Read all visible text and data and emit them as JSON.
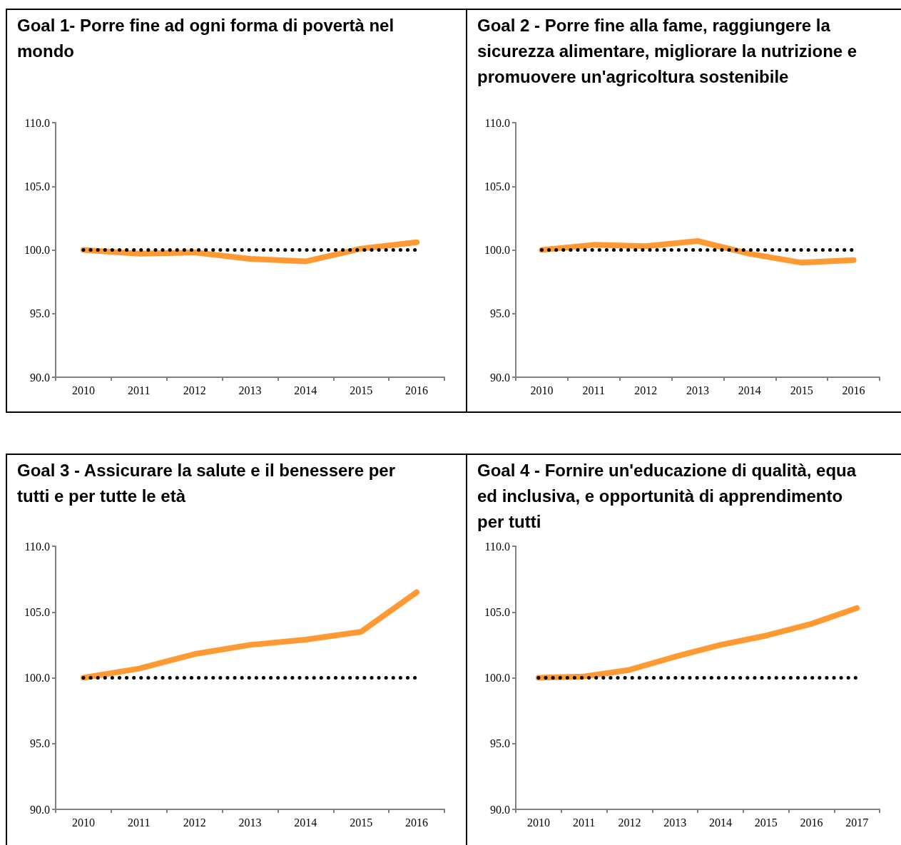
{
  "chart_data": [
    {
      "type": "line",
      "title": "Goal 1- Porre fine ad ogni forma di povertà nel mondo",
      "categories": [
        "2010",
        "2011",
        "2012",
        "2013",
        "2014",
        "2015",
        "2016"
      ],
      "series": [
        {
          "color": "#ff9933",
          "line_style": "solid",
          "values": [
            100.0,
            99.7,
            99.8,
            99.3,
            99.1,
            100.1,
            100.6
          ]
        },
        {
          "color": "#000000",
          "line_style": "dotted",
          "values": [
            100,
            100,
            100,
            100,
            100,
            100,
            100
          ]
        }
      ],
      "ylim": [
        90,
        110
      ],
      "yticks": [
        {
          "value": 90,
          "label": "90.0"
        },
        {
          "value": 95,
          "label": "95.0"
        },
        {
          "value": 100,
          "label": "100.0"
        },
        {
          "value": 105,
          "label": "105.0"
        },
        {
          "value": 110,
          "label": "110.0"
        }
      ],
      "marker": "none",
      "grid": false
    },
    {
      "type": "line",
      "title": "Goal 2 - Porre fine alla fame, raggiungere la sicurezza alimentare, migliorare la nutrizione e promuovere un'agricoltura sostenibile",
      "categories": [
        "2010",
        "2011",
        "2012",
        "2013",
        "2014",
        "2015",
        "2016"
      ],
      "series": [
        {
          "color": "#ff9933",
          "line_style": "solid",
          "values": [
            100.0,
            100.4,
            100.3,
            100.7,
            99.7,
            99.0,
            99.2
          ]
        },
        {
          "color": "#000000",
          "line_style": "dotted",
          "values": [
            100,
            100,
            100,
            100,
            100,
            100,
            100
          ]
        }
      ],
      "ylim": [
        90,
        110
      ],
      "yticks": [
        {
          "value": 90,
          "label": "90.0"
        },
        {
          "value": 95,
          "label": "95.0"
        },
        {
          "value": 100,
          "label": "100.0"
        },
        {
          "value": 105,
          "label": "105.0"
        },
        {
          "value": 110,
          "label": "110.0"
        }
      ],
      "marker": "none",
      "grid": false
    },
    {
      "type": "line",
      "title": "Goal 3 - Assicurare la salute e il benessere per tutti e per tutte le età",
      "categories": [
        "2010",
        "2011",
        "2012",
        "2013",
        "2014",
        "2015",
        "2016"
      ],
      "series": [
        {
          "color": "#ff9933",
          "line_style": "solid",
          "values": [
            100.0,
            100.7,
            101.8,
            102.5,
            102.9,
            103.5,
            106.5
          ]
        },
        {
          "color": "#000000",
          "line_style": "dotted",
          "values": [
            100,
            100,
            100,
            100,
            100,
            100,
            100
          ]
        }
      ],
      "ylim": [
        90,
        110
      ],
      "yticks": [
        {
          "value": 90,
          "label": "90.0"
        },
        {
          "value": 95,
          "label": "95.0"
        },
        {
          "value": 100,
          "label": "100.0"
        },
        {
          "value": 105,
          "label": "105.0"
        },
        {
          "value": 110,
          "label": "110.0"
        }
      ],
      "marker": "none",
      "grid": false
    },
    {
      "type": "line",
      "title": "Goal 4 - Fornire un'educazione di qualità, equa ed inclusiva, e opportunità di apprendimento per tutti",
      "categories": [
        "2010",
        "2011",
        "2012",
        "2013",
        "2014",
        "2015",
        "2016",
        "2017"
      ],
      "series": [
        {
          "color": "#ff9933",
          "line_style": "solid",
          "values": [
            100.0,
            100.1,
            100.6,
            101.6,
            102.5,
            103.2,
            104.1,
            105.3
          ]
        },
        {
          "color": "#000000",
          "line_style": "dotted",
          "values": [
            100,
            100,
            100,
            100,
            100,
            100,
            100,
            100
          ]
        }
      ],
      "ylim": [
        90,
        110
      ],
      "yticks": [
        {
          "value": 90,
          "label": "90.0"
        },
        {
          "value": 95,
          "label": "95.0"
        },
        {
          "value": 100,
          "label": "100.0"
        },
        {
          "value": 105,
          "label": "105.0"
        },
        {
          "value": 110,
          "label": "110.0"
        }
      ],
      "marker": "none",
      "grid": false
    }
  ]
}
